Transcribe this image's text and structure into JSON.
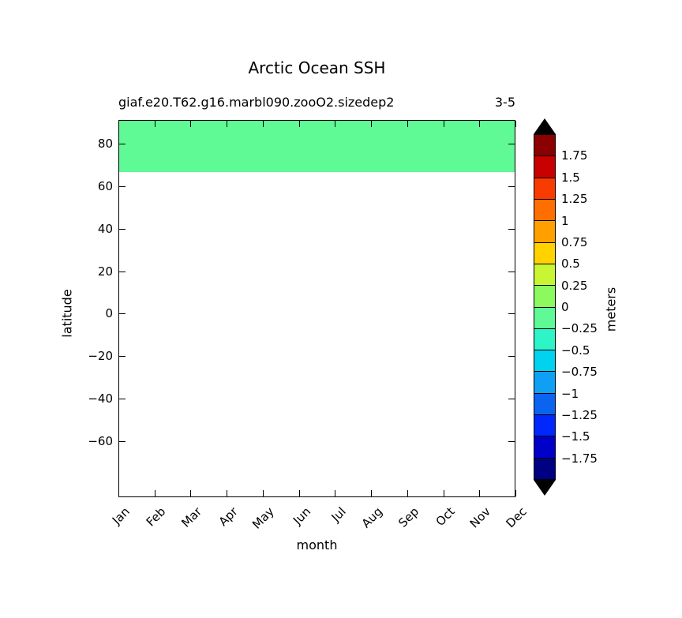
{
  "figure": {
    "title": "Arctic Ocean SSH",
    "subtitle": "giaf.e20.T62.g16.marbl090.zooO2.sizedep2",
    "panel_id": "3-5",
    "xlabel": "month",
    "ylabel": "latitude"
  },
  "axes": {
    "x_tick_labels": [
      "Jan",
      "Feb",
      "Mar",
      "Apr",
      "May",
      "Jun",
      "Jul",
      "Aug",
      "Sep",
      "Oct",
      "Nov",
      "Dec"
    ],
    "y_tick_labels": [
      "80",
      "60",
      "40",
      "20",
      "0",
      "−20",
      "−40",
      "−60"
    ]
  },
  "plot": {
    "background": "#ffffff",
    "band_color": "#5ffa96"
  },
  "colorbar": {
    "label": "meters",
    "tick_labels": [
      "1.75",
      "1.5",
      "1.25",
      "1",
      "0.75",
      "0.5",
      "0.25",
      "0",
      "−0.25",
      "−0.5",
      "−0.75",
      "−1",
      "−1.25",
      "−1.5",
      "−1.75"
    ],
    "cell_colors": [
      "#8b0000",
      "#c80000",
      "#f83c00",
      "#ff6e00",
      "#ffa000",
      "#ffd200",
      "#c8f632",
      "#8cf95f",
      "#5ffa96",
      "#2df5c8",
      "#00d2f0",
      "#0fa0f5",
      "#0a64f0",
      "#0028fa",
      "#0000c8",
      "#000082"
    ],
    "arrow_color": "#000000"
  },
  "chart_data": {
    "type": "heatmap",
    "title": "Arctic Ocean SSH",
    "subtitle": "giaf.e20.T62.g16.marbl090.zooO2.sizedep2",
    "panel_label": "3-5",
    "xlabel": "month",
    "ylabel": "latitude",
    "x_categories": [
      "Jan",
      "Feb",
      "Mar",
      "Apr",
      "May",
      "Jun",
      "Jul",
      "Aug",
      "Sep",
      "Oct",
      "Nov",
      "Dec"
    ],
    "y_axis": {
      "min": -79,
      "max": 90,
      "tick_values": [
        80,
        60,
        40,
        20,
        0,
        -20,
        -40,
        -60
      ]
    },
    "colorbar": {
      "unit": "meters",
      "tick_values": [
        1.75,
        1.5,
        1.25,
        1,
        0.75,
        0.5,
        0.25,
        0,
        -0.25,
        -0.5,
        -0.75,
        -1,
        -1.25,
        -1.5,
        -1.75
      ],
      "bin_size": 0.25,
      "range": [
        -2,
        2
      ],
      "extend": "both",
      "legend_position": "right"
    },
    "grid": false,
    "regions": [
      {
        "description": "Uniform Arctic Ocean SSH band across all twelve months",
        "months": [
          "Jan",
          "Feb",
          "Mar",
          "Apr",
          "May",
          "Jun",
          "Jul",
          "Aug",
          "Sep",
          "Oct",
          "Nov",
          "Dec"
        ],
        "lat_min": 67,
        "lat_max": 90,
        "value_bin_meters": [
          -0.25,
          0
        ],
        "approx_value_meters": -0.1
      }
    ],
    "no_data_note": "latitudes south of ~67N are blank (white, no data)"
  }
}
